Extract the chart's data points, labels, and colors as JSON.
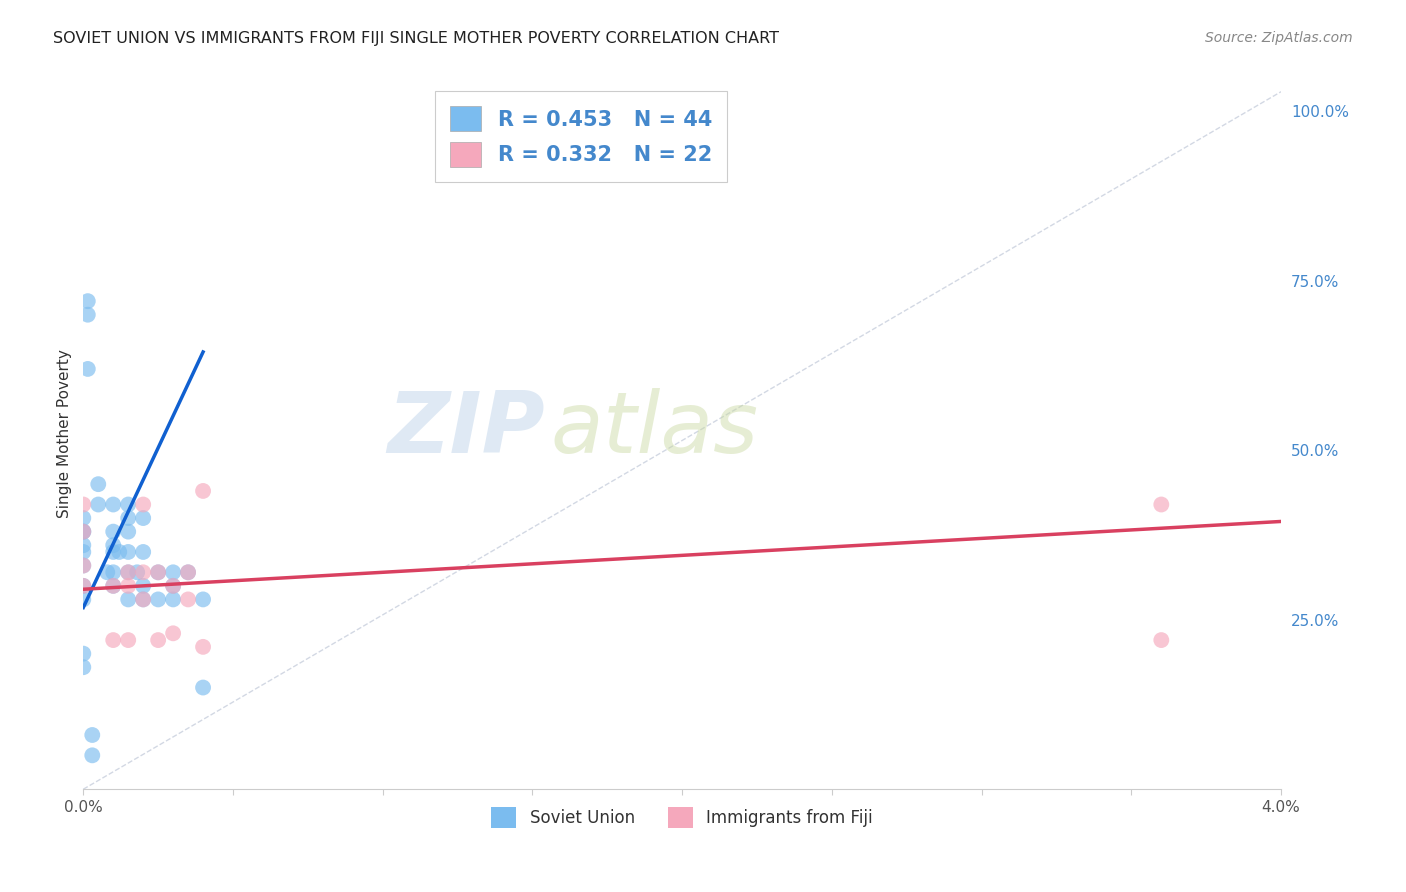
{
  "title": "SOVIET UNION VS IMMIGRANTS FROM FIJI SINGLE MOTHER POVERTY CORRELATION CHART",
  "source": "Source: ZipAtlas.com",
  "ylabel": "Single Mother Poverty",
  "ylabel_right_ticks": [
    "100.0%",
    "75.0%",
    "50.0%",
    "25.0%"
  ],
  "ylabel_right_vals": [
    1.0,
    0.75,
    0.5,
    0.25
  ],
  "legend_label1": "Soviet Union",
  "legend_label2": "Immigrants from Fiji",
  "R1": 0.453,
  "N1": 44,
  "R2": 0.332,
  "N2": 22,
  "color_soviet": "#7bbcef",
  "color_fiji": "#f5a8bc",
  "color_trendline_soviet": "#1060d0",
  "color_trendline_fiji": "#d94060",
  "color_diagonal": "#c0c8d8",
  "watermark_zip": "ZIP",
  "watermark_atlas": "atlas",
  "xmin": 0.0,
  "xmax": 0.04,
  "ymin": 0.0,
  "ymax": 1.05,
  "soviet_x": [
    0.0,
    0.0,
    0.0,
    0.0,
    0.0,
    0.0,
    0.0,
    0.0,
    0.0,
    0.0,
    0.0005,
    0.0005,
    0.001,
    0.001,
    0.001,
    0.001,
    0.001,
    0.0015,
    0.0015,
    0.0015,
    0.0015,
    0.0015,
    0.0015,
    0.002,
    0.002,
    0.002,
    0.002,
    0.0025,
    0.0025,
    0.003,
    0.003,
    0.003,
    0.0035,
    0.004,
    0.004,
    0.00015,
    0.00015,
    0.00015,
    0.0003,
    0.0003,
    0.0008,
    0.001,
    0.0012,
    0.0018
  ],
  "soviet_y": [
    0.33,
    0.35,
    0.36,
    0.38,
    0.38,
    0.4,
    0.28,
    0.3,
    0.2,
    0.18,
    0.42,
    0.45,
    0.38,
    0.36,
    0.42,
    0.35,
    0.32,
    0.4,
    0.42,
    0.38,
    0.35,
    0.32,
    0.28,
    0.4,
    0.35,
    0.3,
    0.28,
    0.32,
    0.28,
    0.32,
    0.3,
    0.28,
    0.32,
    0.28,
    0.15,
    0.7,
    0.62,
    0.72,
    0.08,
    0.05,
    0.32,
    0.3,
    0.35,
    0.32
  ],
  "fiji_x": [
    0.0,
    0.0,
    0.0,
    0.0,
    0.001,
    0.001,
    0.0015,
    0.0015,
    0.0015,
    0.002,
    0.002,
    0.002,
    0.0025,
    0.0025,
    0.003,
    0.003,
    0.0035,
    0.0035,
    0.004,
    0.004,
    0.036,
    0.036
  ],
  "fiji_y": [
    0.42,
    0.38,
    0.33,
    0.3,
    0.3,
    0.22,
    0.32,
    0.3,
    0.22,
    0.42,
    0.32,
    0.28,
    0.32,
    0.22,
    0.3,
    0.23,
    0.32,
    0.28,
    0.44,
    0.21,
    0.42,
    0.22
  ],
  "soviet_trend_x": [
    0.0,
    0.004
  ],
  "soviet_trend_y": [
    0.268,
    0.645
  ],
  "fiji_trend_x": [
    0.0,
    0.04
  ],
  "fiji_trend_y": [
    0.295,
    0.395
  ]
}
